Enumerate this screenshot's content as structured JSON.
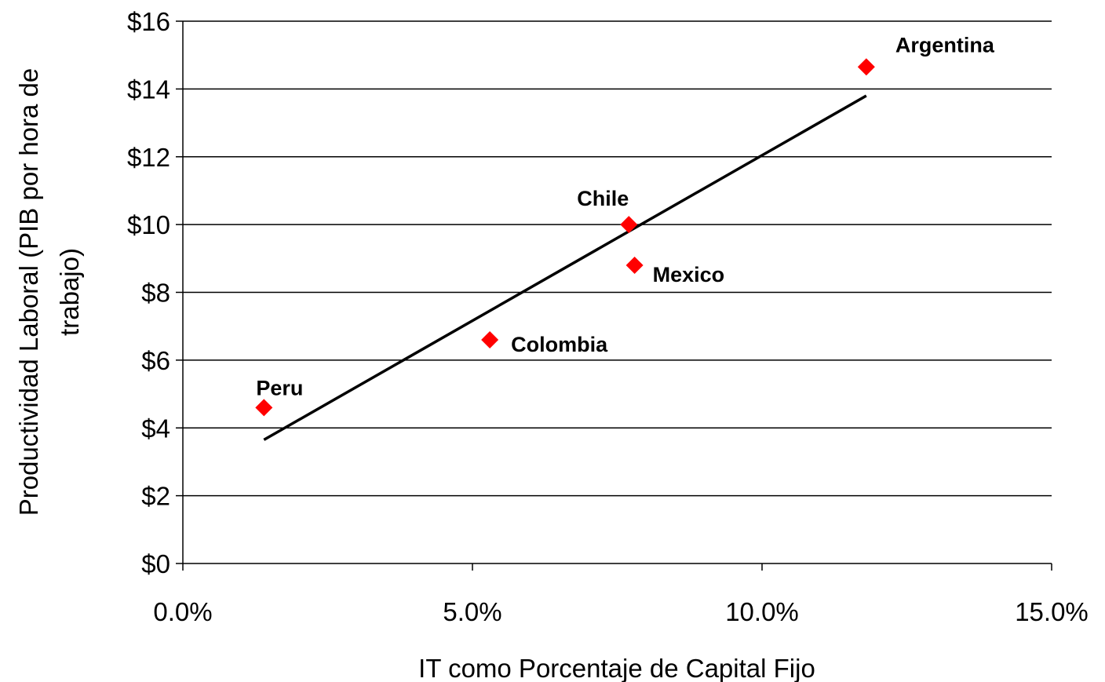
{
  "chart_data": {
    "type": "scatter",
    "title": "",
    "xlabel": "IT como Porcentaje de Capital Fijo",
    "ylabel_lines": [
      "Productividad Laboral (PIB por hora de",
      "trabajo)"
    ],
    "xlim": [
      0,
      15
    ],
    "ylim": [
      0,
      16
    ],
    "x_ticks": [
      0,
      5,
      10,
      15
    ],
    "x_tick_labels": [
      "0.0%",
      "5.0%",
      "10.0%",
      "15.0%"
    ],
    "y_ticks": [
      0,
      2,
      4,
      6,
      8,
      10,
      12,
      14,
      16
    ],
    "y_tick_labels": [
      "$0",
      "$2",
      "$4",
      "$6",
      "$8",
      "$10",
      "$12",
      "$14",
      "$16"
    ],
    "grid": {
      "horizontal": true,
      "vertical": false
    },
    "marker": {
      "shape": "diamond",
      "color": "#ff0000"
    },
    "points": [
      {
        "label": "Peru",
        "x": 1.4,
        "y": 4.6,
        "label_pos": "above-right"
      },
      {
        "label": "Colombia",
        "x": 5.3,
        "y": 6.6,
        "label_pos": "right"
      },
      {
        "label": "Chile",
        "x": 7.7,
        "y": 10.0,
        "label_pos": "above-left"
      },
      {
        "label": "Mexico",
        "x": 7.8,
        "y": 8.8,
        "label_pos": "below-right"
      },
      {
        "label": "Argentina",
        "x": 11.8,
        "y": 14.65,
        "label_pos": "above-right"
      }
    ],
    "trendline": {
      "type": "linear",
      "color": "#000000",
      "from": {
        "x": 1.4,
        "y": 3.65
      },
      "to": {
        "x": 11.8,
        "y": 13.8
      }
    }
  }
}
